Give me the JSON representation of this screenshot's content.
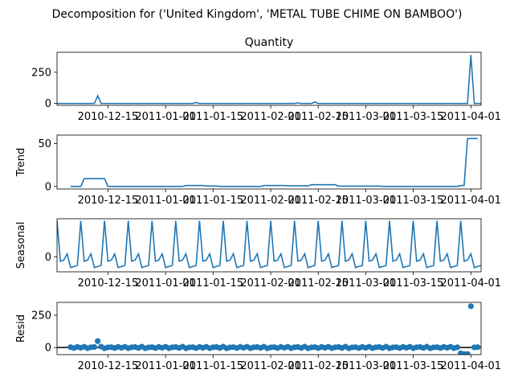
{
  "figure": {
    "suptitle": "Decomposition for ('United Kingdom', 'METAL TUBE CHIME ON BAMBOO')"
  },
  "chart_data": [
    {
      "type": "line",
      "title": "Quantity",
      "ylabel": "",
      "ylim": [
        -15,
        410
      ],
      "yticks": [
        0,
        250
      ],
      "series_color": "#1f77b4",
      "baseline": 0,
      "spikes": [
        {
          "date": "2010-12-12",
          "value": 62
        },
        {
          "date": "2011-01-10",
          "value": 8
        },
        {
          "date": "2011-02-09",
          "value": 5
        },
        {
          "date": "2011-02-14",
          "value": 12
        },
        {
          "date": "2011-04-01",
          "value": 388
        }
      ],
      "end_value": 0
    },
    {
      "type": "line",
      "title": "",
      "ylabel": "Trend",
      "ylim": [
        -3,
        60
      ],
      "yticks": [
        0,
        50
      ],
      "series_color": "#1f77b4",
      "segments": [
        {
          "from": "2010-12-04",
          "to": "2010-12-07",
          "value": 0
        },
        {
          "from": "2010-12-08",
          "to": "2010-12-14",
          "value": 9
        },
        {
          "from": "2010-12-15",
          "to": "2011-01-06",
          "value": 0
        },
        {
          "from": "2011-01-07",
          "to": "2011-01-12",
          "value": 1
        },
        {
          "from": "2011-01-13",
          "to": "2011-01-16",
          "value": 0.5
        },
        {
          "from": "2011-01-17",
          "to": "2011-01-29",
          "value": 0
        },
        {
          "from": "2011-01-30",
          "to": "2011-02-05",
          "value": 1
        },
        {
          "from": "2011-02-06",
          "to": "2011-02-12",
          "value": 0.7
        },
        {
          "from": "2011-02-13",
          "to": "2011-02-20",
          "value": 2
        },
        {
          "from": "2011-02-21",
          "to": "2011-03-05",
          "value": 0.4
        },
        {
          "from": "2011-03-06",
          "to": "2011-03-28",
          "value": 0
        },
        {
          "from": "2011-03-29",
          "to": "2011-03-30",
          "value": 1
        },
        {
          "from": "2011-03-31",
          "to": "2011-04-03",
          "value": 56
        }
      ]
    },
    {
      "type": "line",
      "title": "",
      "ylabel": "Seasonal",
      "ylim": [
        -7,
        18
      ],
      "yticks": [
        0
      ],
      "series_color": "#1f77b4",
      "start_date": "2010-11-30",
      "period": 7,
      "pattern": [
        17,
        -2,
        -1.5,
        1.5,
        -5,
        -4.5,
        -4
      ]
    },
    {
      "type": "scatter",
      "title": "",
      "ylabel": "Resid",
      "ylim": [
        -55,
        350
      ],
      "yticks": [
        0,
        250
      ],
      "series_color": "#1f77b4",
      "baseline": 0,
      "outliers": [
        {
          "date": "2010-12-12",
          "value": 50
        },
        {
          "date": "2011-03-29",
          "value": -45
        },
        {
          "date": "2011-03-30",
          "value": -50
        },
        {
          "date": "2011-03-31",
          "value": -50
        },
        {
          "date": "2011-04-01",
          "value": 320
        }
      ]
    }
  ],
  "x_axis": {
    "range": [
      "2010-11-30",
      "2011-04-04"
    ],
    "ticks": [
      "2010-12-15",
      "2011-01-01",
      "2011-01-15",
      "2011-02-01",
      "2011-02-15",
      "2011-03-01",
      "2011-03-15",
      "2011-04-01"
    ]
  }
}
